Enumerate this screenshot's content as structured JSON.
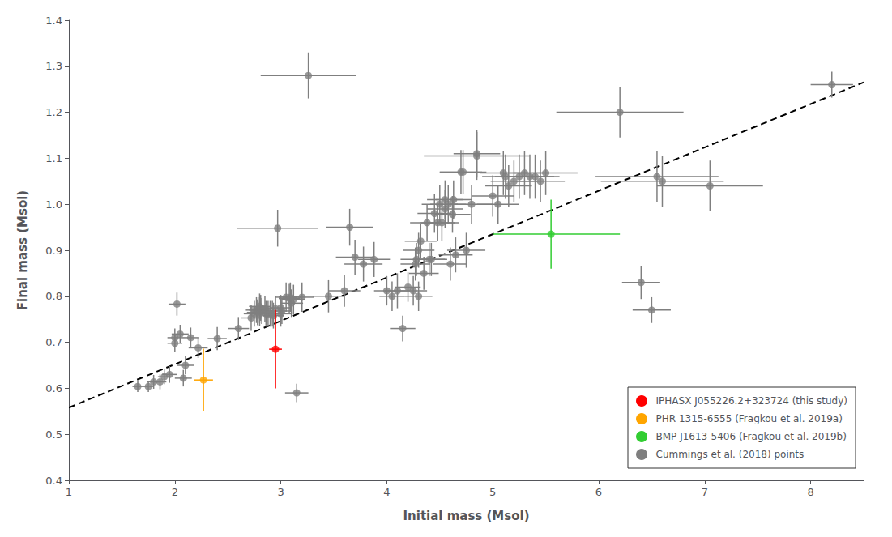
{
  "chart_data": {
    "type": "scatter",
    "xlabel": "Initial mass (Msol)",
    "ylabel": "Final mass (Msol)",
    "xlim": [
      1,
      8.5
    ],
    "ylim": [
      0.4,
      1.4
    ],
    "xticks": [
      1,
      2,
      3,
      4,
      5,
      6,
      7,
      8
    ],
    "yticks": [
      0.4,
      0.5,
      0.6,
      0.7,
      0.8,
      0.9,
      {
        "value": 1.0,
        "label": "1.0"
      },
      1.1,
      1.2,
      1.3,
      1.4
    ],
    "grid": false,
    "legend": "lower right",
    "series": [
      {
        "type": "line",
        "line_style": "dashed",
        "color": "#000000",
        "x": [
          1.0,
          8.5
        ],
        "y": [
          0.558,
          1.265
        ]
      },
      {
        "name": "IPHASX J055226.2+323724 (this study)",
        "type": "scatter",
        "marker": "circle",
        "color": "#ff0000",
        "x": [
          2.95
        ],
        "y": [
          0.685
        ],
        "xerr_minus": [
          0.06
        ],
        "xerr_plus": [
          0.06
        ],
        "yerr_minus": [
          0.085
        ],
        "yerr_plus": [
          0.085
        ]
      },
      {
        "name": "PHR 1315-6555 (Fragkou et al. 2019a)",
        "type": "scatter",
        "marker": "circle",
        "color": "#FFA500",
        "x": [
          2.27
        ],
        "y": [
          0.618
        ],
        "xerr_minus": [
          0.09
        ],
        "xerr_plus": [
          0.09
        ],
        "yerr_minus": [
          0.068
        ],
        "yerr_plus": [
          0.068
        ]
      },
      {
        "name": "BMP J1613-5406 (Fragkou et al. 2019b)",
        "type": "scatter",
        "marker": "circle",
        "color": "#32CD32",
        "x": [
          5.55
        ],
        "y": [
          0.935
        ],
        "xerr_minus": [
          0.55
        ],
        "xerr_plus": [
          0.65
        ],
        "yerr_minus": [
          0.075
        ],
        "yerr_plus": [
          0.075
        ]
      },
      {
        "name": "Cummings et al. (2018) points",
        "type": "scatter",
        "marker": "circle",
        "color": "#7f7f7f",
        "x": [
          1.65,
          1.75,
          1.8,
          1.86,
          1.9,
          1.95,
          2.0,
          2.0,
          2.02,
          2.05,
          2.08,
          2.1,
          2.15,
          2.22,
          2.4,
          2.6,
          2.72,
          2.75,
          2.77,
          2.78,
          2.8,
          2.8,
          2.8,
          2.81,
          2.82,
          2.85,
          2.86,
          2.88,
          2.9,
          2.92,
          2.93,
          2.95,
          2.97,
          3.0,
          3.0,
          3.01,
          3.05,
          3.08,
          3.09,
          3.1,
          3.12,
          3.15,
          3.2,
          3.26,
          3.45,
          3.6,
          3.65,
          3.7,
          3.78,
          3.88,
          4.0,
          4.05,
          4.1,
          4.15,
          4.2,
          4.25,
          4.27,
          4.28,
          4.3,
          4.3,
          4.32,
          4.35,
          4.38,
          4.4,
          4.42,
          4.45,
          4.48,
          4.5,
          4.52,
          4.55,
          4.55,
          4.58,
          4.6,
          4.62,
          4.63,
          4.65,
          4.7,
          4.72,
          4.75,
          4.8,
          4.85,
          4.85,
          5.0,
          5.05,
          5.1,
          5.12,
          5.15,
          5.2,
          5.25,
          5.3,
          5.35,
          5.4,
          5.45,
          5.5,
          6.2,
          6.4,
          6.5,
          6.55,
          6.6,
          7.05,
          8.2
        ],
        "y": [
          0.604,
          0.604,
          0.614,
          0.614,
          0.625,
          0.63,
          0.698,
          0.71,
          0.783,
          0.718,
          0.622,
          0.65,
          0.71,
          0.688,
          0.708,
          0.73,
          0.753,
          0.762,
          0.77,
          0.765,
          0.77,
          0.778,
          0.762,
          0.775,
          0.768,
          0.773,
          0.762,
          0.762,
          0.762,
          0.762,
          0.758,
          0.773,
          0.948,
          0.775,
          0.762,
          0.768,
          0.798,
          0.795,
          0.798,
          0.785,
          0.793,
          0.59,
          0.798,
          1.28,
          0.8,
          0.812,
          0.95,
          0.885,
          0.87,
          0.88,
          0.812,
          0.8,
          0.812,
          0.73,
          0.82,
          0.812,
          0.87,
          0.88,
          0.8,
          0.9,
          0.92,
          0.85,
          0.96,
          0.88,
          0.88,
          0.98,
          0.96,
          1.0,
          0.96,
          1.01,
          0.99,
          1.0,
          0.87,
          0.978,
          1.01,
          0.89,
          1.07,
          1.07,
          0.9,
          1.0,
          1.11,
          1.105,
          1.018,
          1.0,
          1.068,
          1.06,
          1.04,
          1.05,
          1.06,
          1.068,
          1.06,
          1.06,
          1.05,
          1.068,
          1.2,
          0.83,
          0.77,
          1.06,
          1.05,
          1.04,
          1.26
        ],
        "xerr": [
          0.05,
          0.05,
          0.06,
          0.06,
          0.06,
          0.07,
          0.07,
          0.07,
          0.08,
          0.08,
          0.08,
          0.08,
          0.08,
          0.09,
          0.09,
          0.1,
          0.1,
          0.1,
          0.1,
          0.1,
          0.1,
          0.1,
          0.1,
          0.1,
          0.1,
          0.1,
          0.1,
          0.1,
          0.1,
          0.1,
          0.1,
          0.1,
          0.38,
          0.1,
          0.1,
          0.1,
          0.1,
          0.1,
          0.11,
          0.11,
          0.11,
          0.11,
          0.11,
          0.45,
          0.15,
          0.15,
          0.22,
          0.18,
          0.18,
          0.15,
          0.12,
          0.12,
          0.12,
          0.12,
          0.12,
          0.13,
          0.14,
          0.15,
          0.13,
          0.15,
          0.15,
          0.14,
          0.16,
          0.15,
          0.15,
          0.16,
          0.16,
          0.17,
          0.16,
          0.17,
          0.17,
          0.17,
          0.16,
          0.17,
          0.17,
          0.16,
          0.2,
          0.22,
          0.18,
          0.2,
          0.22,
          0.5,
          0.2,
          0.2,
          0.22,
          0.22,
          0.22,
          0.22,
          0.23,
          0.23,
          0.23,
          0.23,
          0.23,
          0.3,
          0.6,
          0.18,
          0.18,
          0.58,
          0.58,
          0.5,
          0.2
        ],
        "yerr": [
          0.012,
          0.012,
          0.015,
          0.016,
          0.016,
          0.018,
          0.018,
          0.02,
          0.025,
          0.02,
          0.018,
          0.02,
          0.022,
          0.022,
          0.025,
          0.025,
          0.028,
          0.028,
          0.028,
          0.028,
          0.028,
          0.028,
          0.026,
          0.028,
          0.028,
          0.028,
          0.028,
          0.028,
          0.028,
          0.028,
          0.028,
          0.028,
          0.04,
          0.028,
          0.028,
          0.028,
          0.032,
          0.032,
          0.032,
          0.03,
          0.032,
          0.02,
          0.032,
          0.05,
          0.035,
          0.035,
          0.04,
          0.038,
          0.038,
          0.038,
          0.032,
          0.032,
          0.038,
          0.028,
          0.032,
          0.032,
          0.036,
          0.036,
          0.032,
          0.038,
          0.038,
          0.036,
          0.04,
          0.036,
          0.036,
          0.042,
          0.04,
          0.042,
          0.04,
          0.042,
          0.042,
          0.042,
          0.036,
          0.04,
          0.042,
          0.038,
          0.048,
          0.048,
          0.038,
          0.042,
          0.052,
          0.052,
          0.045,
          0.042,
          0.048,
          0.048,
          0.045,
          0.045,
          0.048,
          0.048,
          0.048,
          0.048,
          0.045,
          0.048,
          0.055,
          0.036,
          0.028,
          0.055,
          0.055,
          0.055,
          0.028
        ]
      }
    ]
  }
}
